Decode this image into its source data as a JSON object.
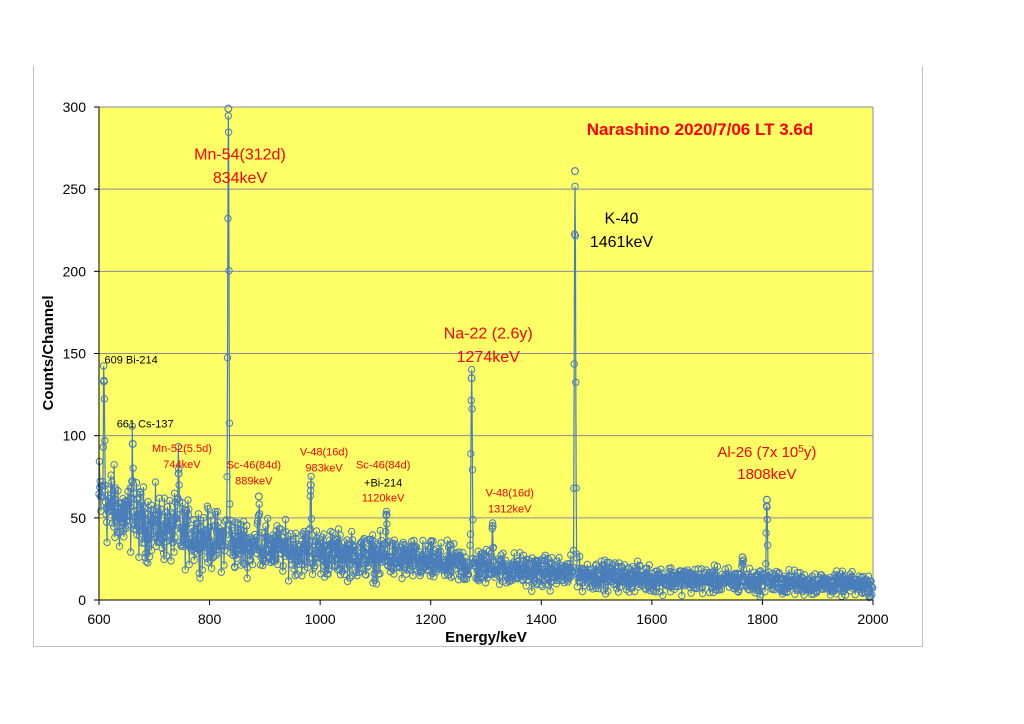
{
  "chart_data": {
    "type": "scatter",
    "title": "Narashino 2020/7/06 LT 3.6d",
    "xlabel": "Energy/keV",
    "ylabel": "Counts/Channel",
    "xlim": [
      600,
      2000
    ],
    "ylim": [
      0,
      300
    ],
    "x_ticks": [
      600,
      800,
      1000,
      1200,
      1400,
      1600,
      1800,
      2000
    ],
    "y_ticks": [
      0,
      50,
      100,
      150,
      200,
      250,
      300
    ],
    "grid": true,
    "plot_background": "#ffff66",
    "series_color": "#4a7ebb",
    "continuum": [
      [
        600,
        62
      ],
      [
        650,
        50
      ],
      [
        700,
        45
      ],
      [
        800,
        37
      ],
      [
        900,
        32
      ],
      [
        1000,
        29
      ],
      [
        1100,
        26
      ],
      [
        1200,
        23
      ],
      [
        1300,
        20
      ],
      [
        1400,
        17
      ],
      [
        1500,
        15
      ],
      [
        1600,
        13
      ],
      [
        1700,
        12
      ],
      [
        1800,
        11
      ],
      [
        1900,
        10
      ],
      [
        2000,
        9
      ]
    ],
    "peaks": [
      {
        "x": 609,
        "y": 133
      },
      {
        "x": 661,
        "y": 95
      },
      {
        "x": 744,
        "y": 77
      },
      {
        "x": 834,
        "y": 299
      },
      {
        "x": 889,
        "y": 63
      },
      {
        "x": 983,
        "y": 70
      },
      {
        "x": 1120,
        "y": 52
      },
      {
        "x": 1274,
        "y": 135
      },
      {
        "x": 1312,
        "y": 45
      },
      {
        "x": 1461,
        "y": 261
      },
      {
        "x": 1764,
        "y": 26
      },
      {
        "x": 1808,
        "y": 61
      }
    ],
    "annotations": [
      {
        "lines": [
          "Mn-54(312d)",
          "834keV"
        ],
        "x": 855,
        "y": 268,
        "size": 16,
        "color": "red"
      },
      {
        "lines": [
          "K-40",
          "1461keV"
        ],
        "x": 1545,
        "y": 229,
        "size": 16,
        "color": "black"
      },
      {
        "lines": [
          "Na-22 (2.6y)",
          "1274keV"
        ],
        "x": 1304,
        "y": 159,
        "size": 16,
        "color": "red"
      },
      {
        "lines": [
          "609 Bi-214"
        ],
        "x": 610,
        "y": 144,
        "size": 11,
        "color": "black",
        "anchor": "start"
      },
      {
        "lines": [
          "661 Cs-137"
        ],
        "x": 632,
        "y": 105,
        "size": 11,
        "color": "black",
        "anchor": "start"
      },
      {
        "lines": [
          "Mn-52(5.5d)",
          "744keV"
        ],
        "x": 750,
        "y": 90,
        "size": 11,
        "color": "red"
      },
      {
        "lines": [
          "Sc-46(84d)",
          "889keV"
        ],
        "x": 880,
        "y": 80,
        "size": 11,
        "color": "red"
      },
      {
        "lines": [
          "V-48(16d)",
          "983keV"
        ],
        "x": 1007,
        "y": 88,
        "size": 11,
        "color": "red"
      },
      {
        "lines": [
          "Sc-46(84d)"
        ],
        "x": 1114,
        "y": 80,
        "size": 11,
        "color": "red"
      },
      {
        "lines": [
          "+Bi-214"
        ],
        "x": 1114,
        "y": 69,
        "size": 11,
        "color": "black"
      },
      {
        "lines": [
          "1120keV"
        ],
        "x": 1114,
        "y": 60,
        "size": 11,
        "color": "red"
      },
      {
        "lines": [
          "V-48(16d)",
          "1312keV"
        ],
        "x": 1343,
        "y": 63,
        "size": 11,
        "color": "red"
      }
    ],
    "al26": {
      "main": "Al-26 (7x 10",
      "sup": "5",
      "tail": "y)",
      "energy": "1808keV",
      "x": 1808,
      "y": 87
    }
  }
}
